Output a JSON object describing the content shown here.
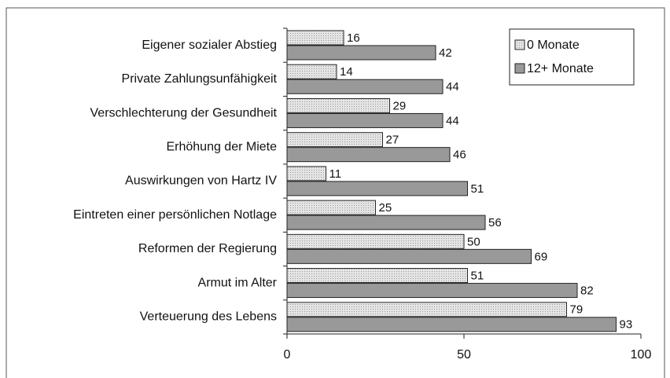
{
  "chart_data": {
    "type": "hbar",
    "categories": [
      "Eigener sozialer Abstieg",
      "Private Zahlungsunfähigkeit",
      "Verschlechterung der Gesundheit",
      "Erhöhung der Miete",
      "Auswirkungen von Hartz IV",
      "Eintreten einer persönlichen Notlage",
      "Reformen der Regierung",
      "Armut im Alter",
      "Verteuerung des Lebens"
    ],
    "series": [
      {
        "name": "0 Monate",
        "color": "#e4e4e4",
        "values": [
          16,
          14,
          29,
          27,
          11,
          25,
          50,
          51,
          79
        ]
      },
      {
        "name": "12+ Monate",
        "color": "#999999",
        "values": [
          42,
          44,
          44,
          46,
          51,
          56,
          69,
          82,
          93
        ]
      }
    ],
    "xlim": [
      0,
      100
    ],
    "xticks": [
      0,
      50,
      100
    ],
    "legend": "upper right"
  }
}
